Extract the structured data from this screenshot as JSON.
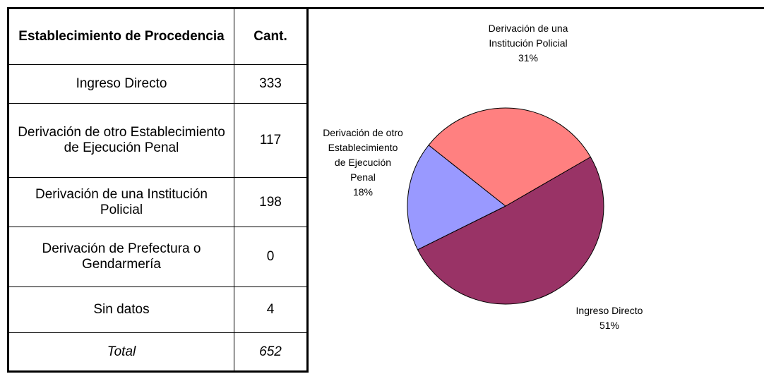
{
  "table": {
    "header": [
      "Establecimiento de Procedencia",
      "Cant."
    ],
    "rows": [
      [
        "Ingreso Directo",
        333
      ],
      [
        "Derivación de otro Establecimiento de Ejecución Penal",
        117
      ],
      [
        "Derivación de una Institución Policial",
        198
      ],
      [
        "Derivación de Prefectura o Gendarmería",
        0
      ],
      [
        "Sin datos",
        4
      ]
    ],
    "total": [
      "Total",
      652
    ]
  },
  "chart_data": {
    "type": "pie",
    "categories": [
      "Ingreso Directo",
      "Derivación de otro Establecimiento de Ejecución Penal",
      "Derivación de una Institución Policial"
    ],
    "values": [
      51,
      18,
      31
    ],
    "value_labels": [
      "51%",
      "18%",
      "31%"
    ],
    "colors": [
      "#993366",
      "#9999ff",
      "#ff8080"
    ]
  }
}
